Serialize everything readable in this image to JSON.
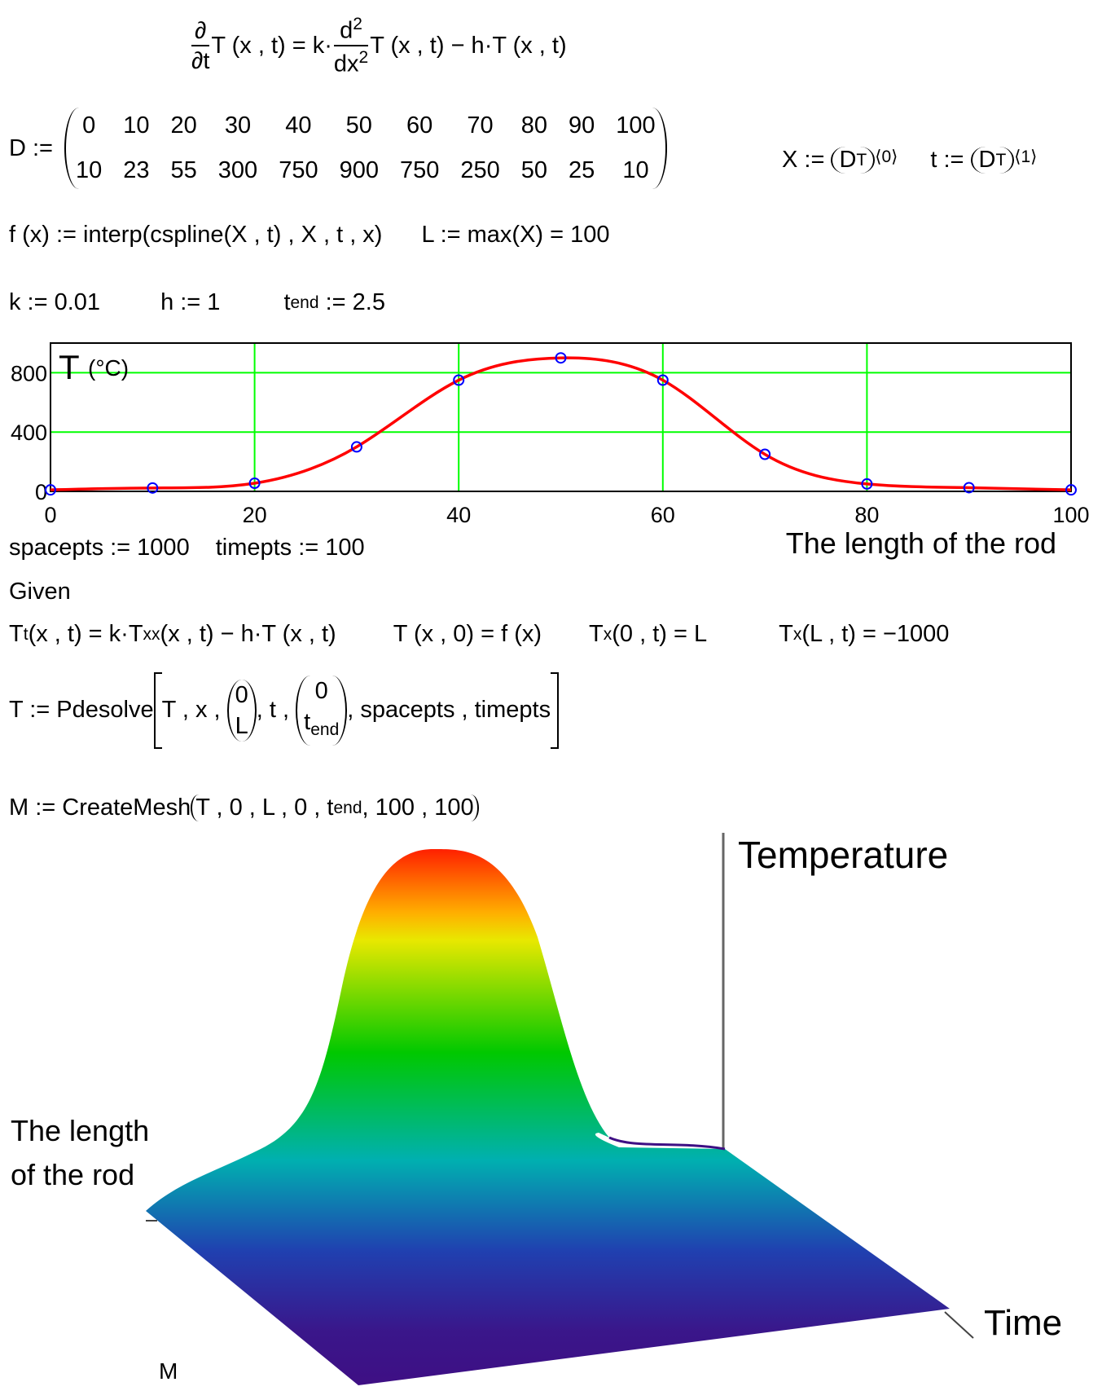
{
  "equation": {
    "ddt_num": "∂",
    "ddt_den": "∂t",
    "lhs_rest": "T (x , t) = k·",
    "d2_num": "d",
    "d2_num_exp": "2",
    "d2_den": "dx",
    "d2_den_exp": "2",
    "rhs": "T (x , t) − h·T (x , t)"
  },
  "matrix": {
    "label": "D :=",
    "rows": [
      [
        0,
        10,
        20,
        30,
        40,
        50,
        60,
        70,
        80,
        90,
        100
      ],
      [
        10,
        23,
        55,
        300,
        750,
        900,
        750,
        250,
        50,
        25,
        10
      ]
    ]
  },
  "transpose": {
    "x_label": "X :=",
    "x_base": "D",
    "x_sup": "T",
    "x_col": "⟨0⟩",
    "t_label": "t :=",
    "t_base": "D",
    "t_sup": "T",
    "t_col": "⟨1⟩"
  },
  "interp_line": [
    "f (x) := interp(cspline(X , t) , X , t , x)",
    "L := max(X) = 100"
  ],
  "params": {
    "k": "k := 0.01",
    "h": "h := 1",
    "tend_base": "t",
    "tend_sub": "end",
    "tend_value": ":= 2.5"
  },
  "chart_data": {
    "type": "line",
    "x": [
      0,
      10,
      20,
      30,
      40,
      50,
      60,
      70,
      80,
      90,
      100
    ],
    "values": [
      10,
      23,
      55,
      300,
      750,
      900,
      750,
      250,
      50,
      25,
      10
    ],
    "line_color": "#ff0000",
    "marker_color": "#0000ff",
    "xlim": [
      0,
      100
    ],
    "ylim": [
      0,
      1000
    ],
    "xticks": [
      0,
      20,
      40,
      60,
      80,
      100
    ],
    "yticks": [
      0,
      400,
      800
    ],
    "grid": true,
    "grid_color": "#00ff00",
    "y_label": "T",
    "y_unit": "(°C)",
    "x_label": "The length of the rod"
  },
  "settings": [
    "spacepts := 1000",
    "timepts := 100"
  ],
  "given": "Given",
  "conditions": {
    "pde_a": "T",
    "pde_a_sub": "t",
    "pde_b": "(x , t) = k·T",
    "pde_b_sub": "xx",
    "pde_c": "(x , t) − h·T (x , t)",
    "init": "T (x , 0) = f (x)",
    "bc1_base": "T",
    "bc1_sub": "x",
    "bc1_rest": "(0 , t) = L",
    "bc2_base": "T",
    "bc2_sub": "x",
    "bc2_rest": "(L , t) = −1000"
  },
  "pdesolve": {
    "prefix": "T := Pdesolve",
    "args1": "T , x ,",
    "v1": [
      "0",
      "L"
    ],
    "mid": ", t ,",
    "v2_top": "0",
    "v2_bottom_base": "t",
    "v2_bottom_sub": "end",
    "args2": ", spacepts , timepts"
  },
  "mesh": {
    "prefix": "M := CreateMesh",
    "args_a": "T , 0 , L , 0 , t",
    "args_sub": "end",
    "args_b": ", 100 , 100"
  },
  "surface": {
    "z_label": "Temperature",
    "x_label": [
      "The length",
      "of the rod"
    ],
    "y_label": "Time",
    "name": "M"
  }
}
